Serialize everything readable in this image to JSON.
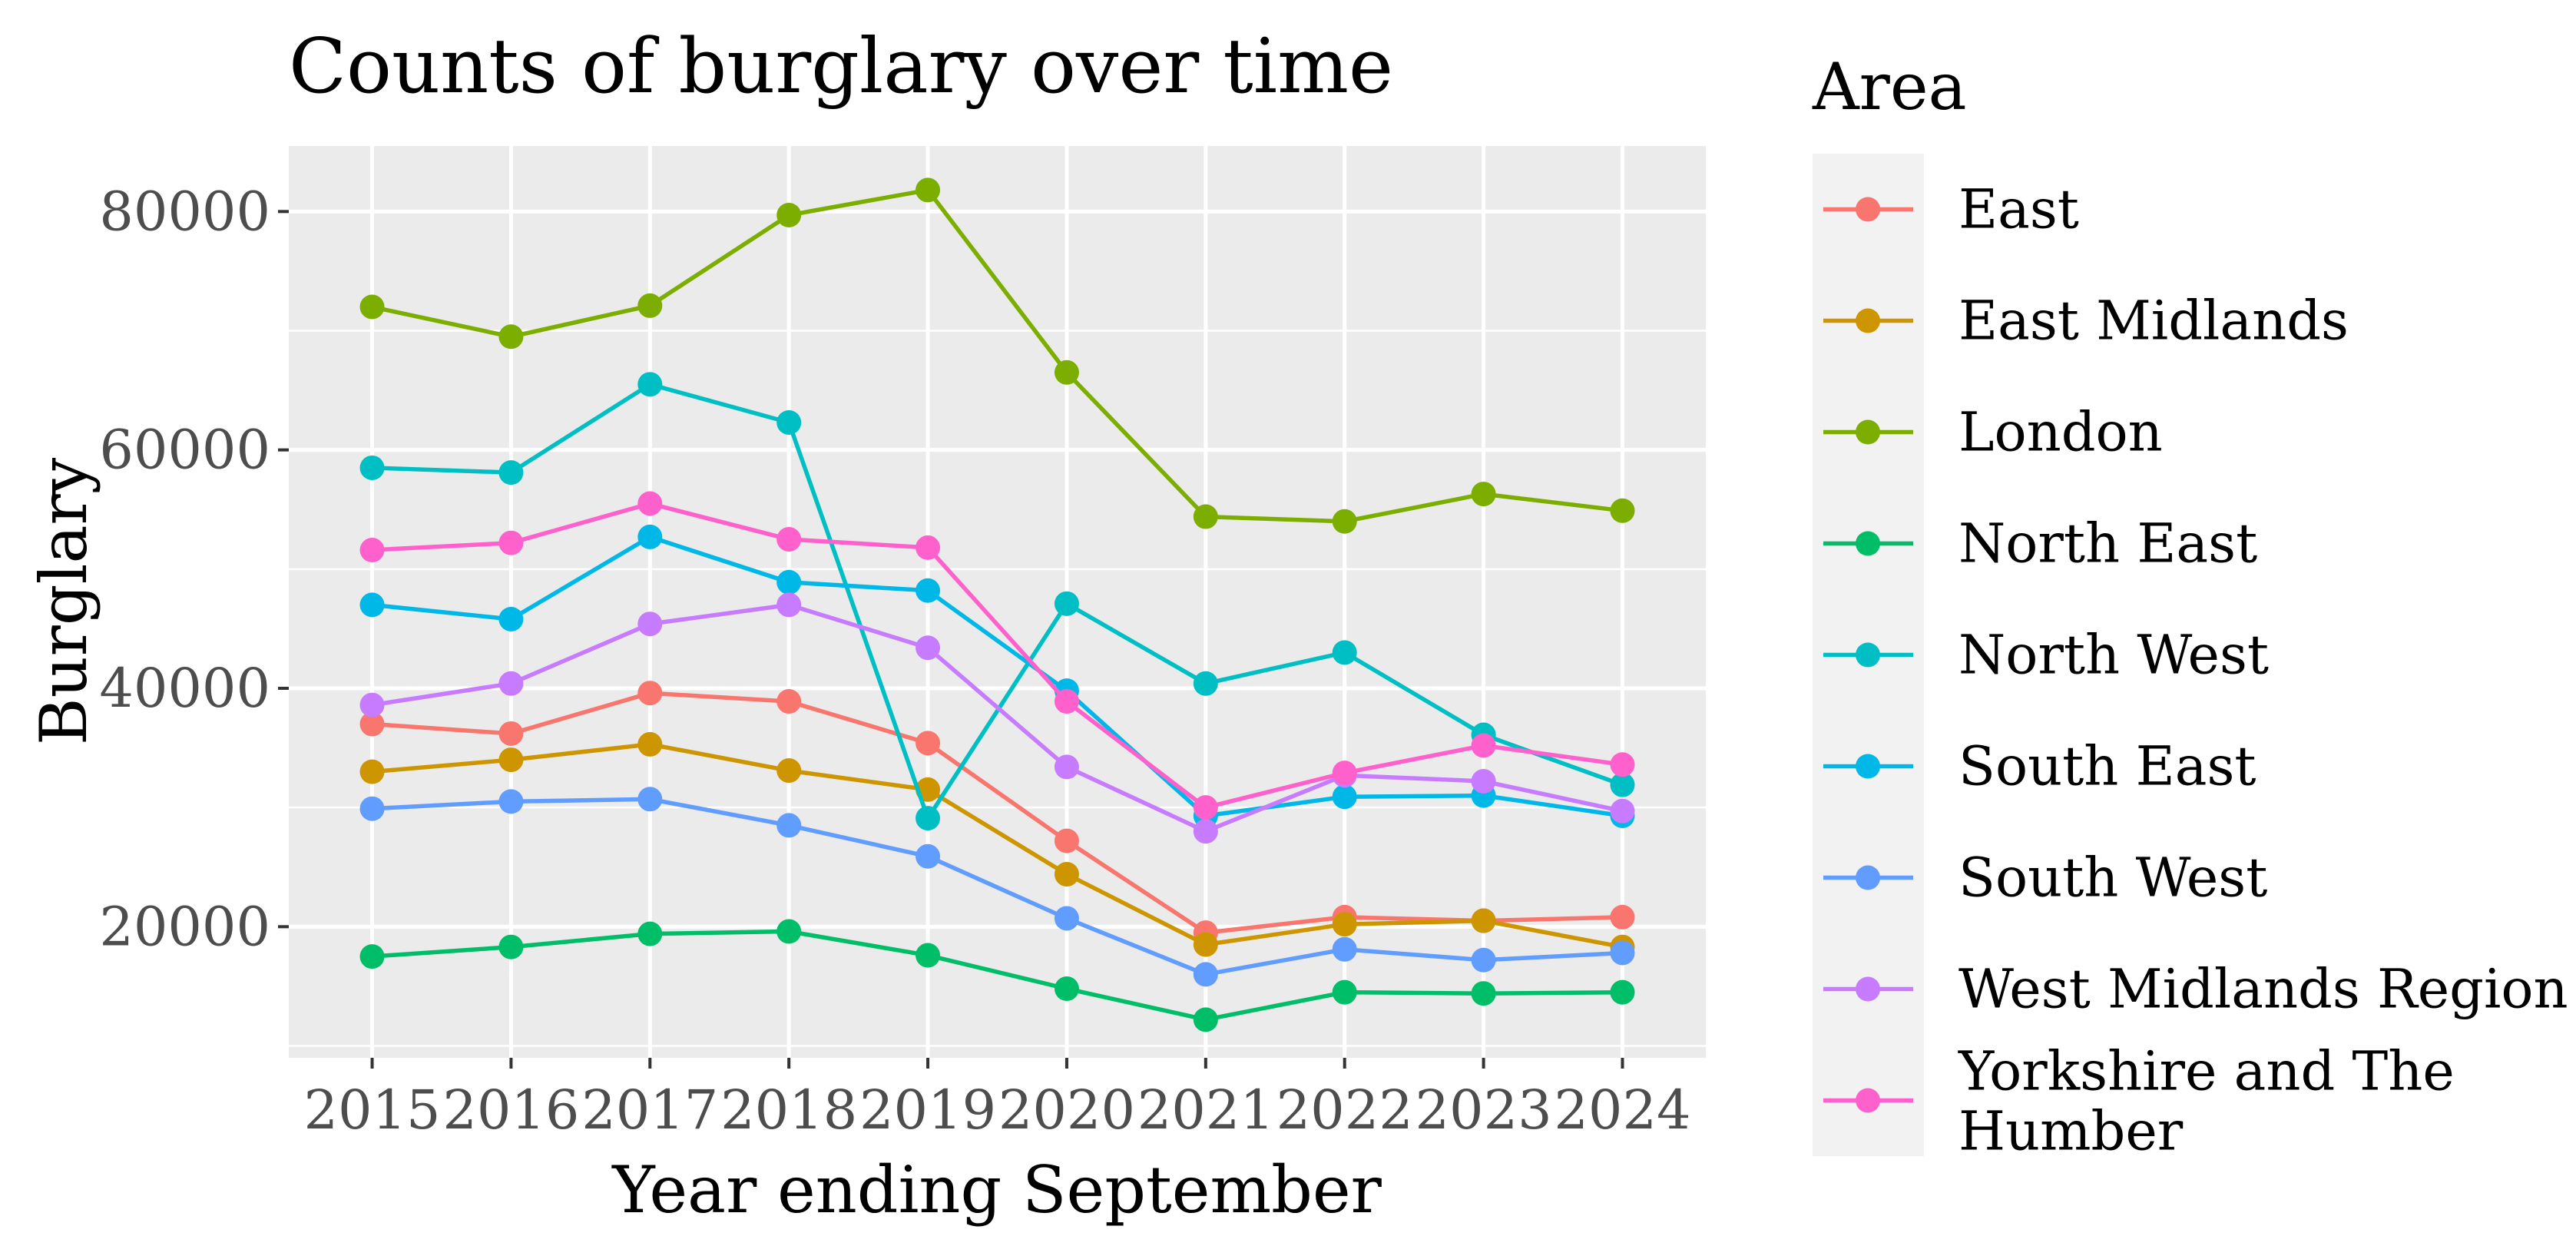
{
  "chart_data": {
    "type": "line",
    "title": "Counts of burglary over time",
    "xlabel": "Year ending September",
    "ylabel": "Burglary",
    "x": [
      2015,
      2016,
      2017,
      2018,
      2019,
      2020,
      2021,
      2022,
      2023,
      2024
    ],
    "ylim": [
      9000,
      85500
    ],
    "yticks": [
      20000,
      40000,
      60000,
      80000
    ],
    "grid": true,
    "legend": {
      "title": "Area",
      "position": "right"
    },
    "series": [
      {
        "name": "East",
        "color": "#F8766D",
        "values": [
          37000,
          36200,
          39600,
          38900,
          35400,
          27200,
          19500,
          20800,
          20500,
          20800
        ]
      },
      {
        "name": "East Midlands",
        "color": "#CD9600",
        "values": [
          33000,
          34000,
          35300,
          33100,
          31500,
          24400,
          18500,
          20200,
          20500,
          18300
        ]
      },
      {
        "name": "London",
        "color": "#7CAE00",
        "values": [
          72000,
          69500,
          72100,
          79700,
          81800,
          66500,
          54400,
          54000,
          56300,
          54900
        ]
      },
      {
        "name": "North East",
        "color": "#00BE67",
        "values": [
          17500,
          18300,
          19400,
          19600,
          17600,
          14800,
          12200,
          14500,
          14400,
          14500
        ]
      },
      {
        "name": "North West",
        "color": "#00BFC4",
        "values": [
          58500,
          58100,
          65500,
          62300,
          29100,
          47100,
          40400,
          43000,
          36100,
          31900
        ]
      },
      {
        "name": "South East",
        "color": "#00B8E7",
        "values": [
          47000,
          45800,
          52700,
          48900,
          48200,
          39800,
          29300,
          30900,
          31000,
          29300
        ]
      },
      {
        "name": "South West",
        "color": "#619CFF",
        "values": [
          29900,
          30500,
          30700,
          28500,
          25900,
          20700,
          16000,
          18100,
          17200,
          17800
        ]
      },
      {
        "name": "West Midlands Region",
        "color": "#C77CFF",
        "values": [
          38600,
          40400,
          45400,
          47000,
          43400,
          33400,
          28000,
          32700,
          32200,
          29700
        ]
      },
      {
        "name": "Yorkshire and The Humber",
        "color": "#FF61CC",
        "values": [
          51600,
          52200,
          55500,
          52500,
          51800,
          38900,
          30000,
          32900,
          35200,
          33600
        ]
      }
    ]
  }
}
